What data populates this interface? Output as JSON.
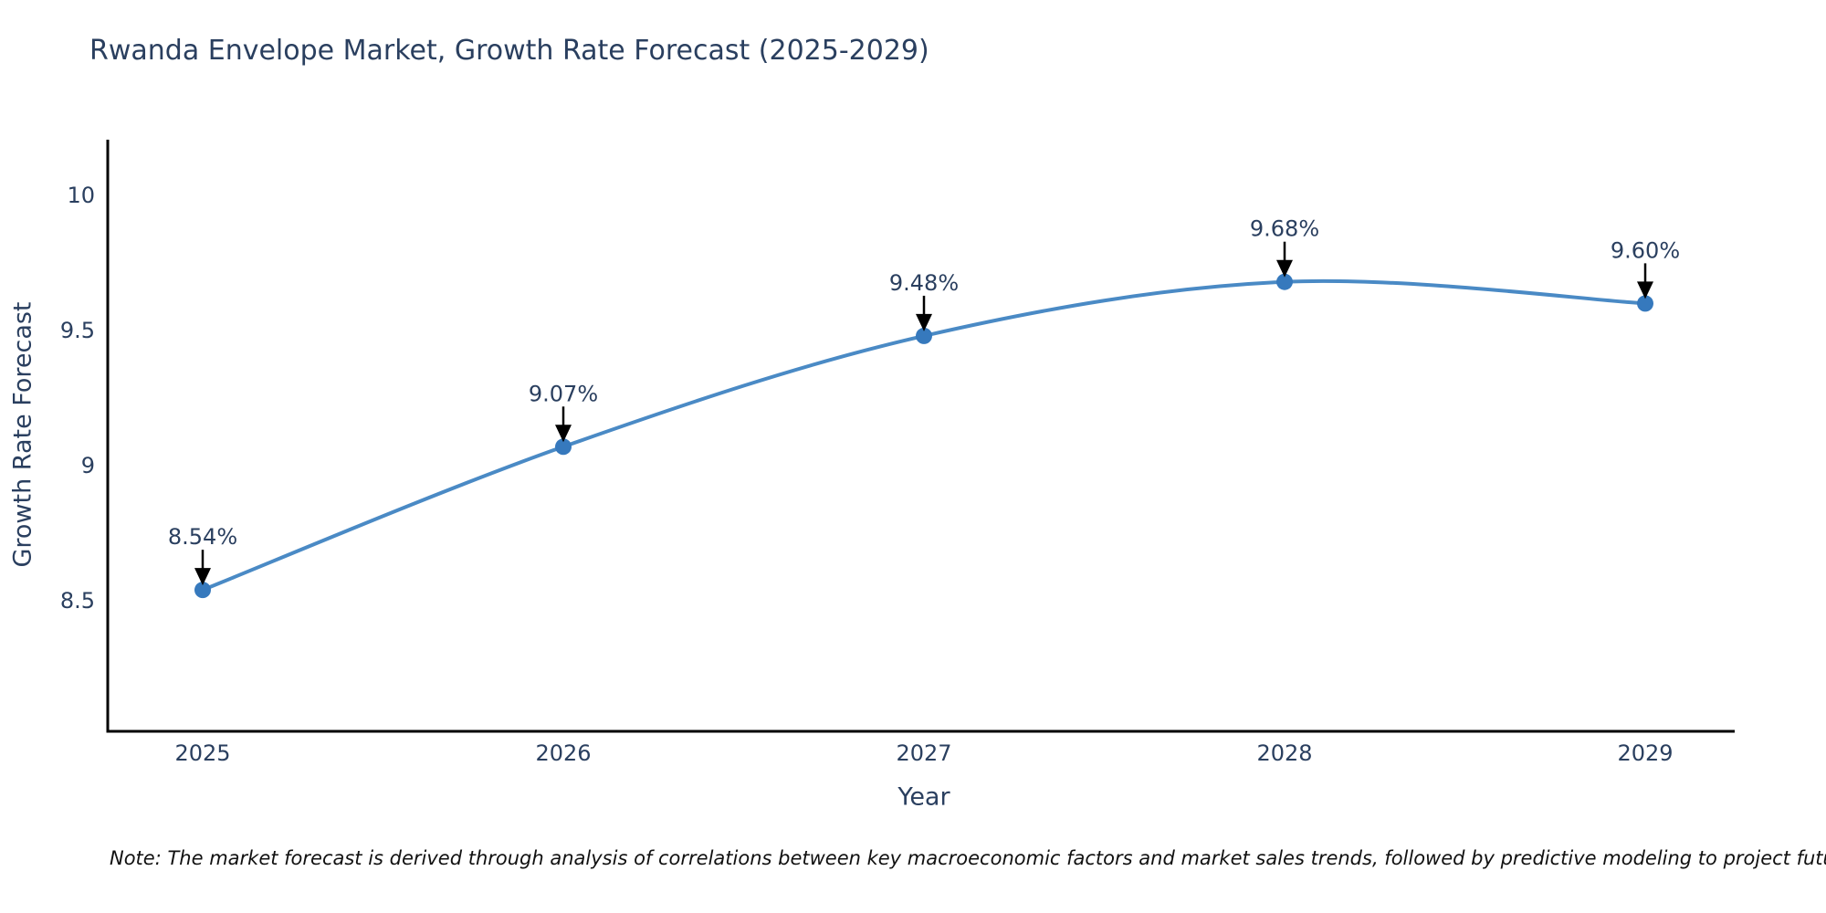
{
  "title": "Rwanda Envelope Market, Growth Rate Forecast (2025-2029)",
  "note": "Note: The market forecast is derived through analysis of correlations between key macroeconomic factors and market sales trends, followed by predictive modeling to project future sales",
  "chart_data": {
    "type": "line",
    "title": "Rwanda Envelope Market, Growth Rate Forecast (2025-2029)",
    "xlabel": "Year",
    "ylabel": "Growth Rate Forecast",
    "categories": [
      2025,
      2026,
      2027,
      2028,
      2029
    ],
    "series": [
      {
        "name": "Growth Rate Forecast",
        "values": [
          8.54,
          9.07,
          9.48,
          9.68,
          9.6
        ],
        "point_labels": [
          "8.54%",
          "9.07%",
          "9.48%",
          "9.68%",
          "9.60%"
        ]
      }
    ],
    "yticks": [
      8.5,
      9,
      9.5,
      10
    ],
    "ytick_labels": [
      "8.5",
      "9",
      "9.5",
      "10"
    ],
    "xtick_labels": [
      "2025",
      "2026",
      "2027",
      "2028",
      "2029"
    ],
    "ylim": [
      7.69,
      10.19
    ],
    "grid": false,
    "legend_position": "none",
    "line_shape": "spline",
    "annotation_arrows": true,
    "colors": {
      "line": "#4a8ac5",
      "marker": "#3679bd",
      "axis_line": "#000000",
      "tick_text": "#2a3f5f",
      "axis_title_text": "#2a3f5f",
      "annotation_text": "#2a3f5f",
      "arrow": "#000000",
      "title_text": "#2a3f5f",
      "background": "#ffffff"
    }
  }
}
